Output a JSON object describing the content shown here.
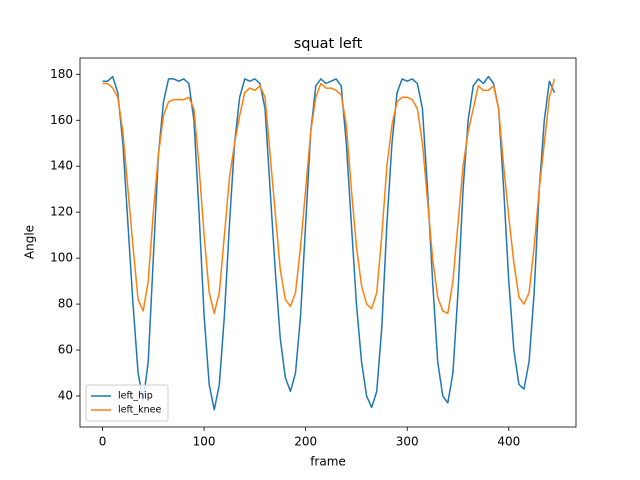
{
  "chart_data": {
    "type": "line",
    "title": "squat left",
    "x_label": "frame",
    "y_label": "Angle",
    "x": [
      0,
      5,
      10,
      15,
      20,
      25,
      30,
      35,
      40,
      45,
      50,
      55,
      60,
      65,
      70,
      75,
      80,
      85,
      90,
      95,
      100,
      105,
      110,
      115,
      120,
      125,
      130,
      135,
      140,
      145,
      150,
      155,
      160,
      165,
      170,
      175,
      180,
      185,
      190,
      195,
      200,
      205,
      210,
      215,
      220,
      225,
      230,
      235,
      240,
      245,
      250,
      255,
      260,
      265,
      270,
      275,
      280,
      285,
      290,
      295,
      300,
      305,
      310,
      315,
      320,
      325,
      330,
      335,
      340,
      345,
      350,
      355,
      360,
      365,
      370,
      375,
      380,
      385,
      390,
      395,
      400,
      405,
      410,
      415,
      420,
      425,
      430,
      435,
      440,
      445
    ],
    "series": [
      {
        "name": "left_hip",
        "color": "#1f77b4",
        "values": [
          177,
          177,
          179,
          172,
          150,
          115,
          80,
          50,
          38,
          55,
          100,
          145,
          168,
          178,
          178,
          177,
          178,
          176,
          160,
          120,
          75,
          45,
          34,
          45,
          75,
          115,
          150,
          170,
          178,
          177,
          178,
          176,
          165,
          130,
          95,
          65,
          48,
          42,
          50,
          75,
          115,
          155,
          175,
          178,
          176,
          177,
          178,
          175,
          150,
          115,
          80,
          55,
          40,
          35,
          42,
          70,
          115,
          150,
          172,
          178,
          177,
          178,
          176,
          165,
          130,
          90,
          55,
          40,
          37,
          50,
          85,
          130,
          160,
          175,
          178,
          176,
          179,
          176,
          165,
          130,
          90,
          60,
          45,
          43,
          55,
          85,
          130,
          160,
          177,
          172
        ]
      },
      {
        "name": "left_knee",
        "color": "#ff7f0e",
        "values": [
          176,
          176,
          174,
          170,
          155,
          130,
          105,
          82,
          77,
          90,
          120,
          145,
          162,
          168,
          169,
          169,
          169,
          170,
          165,
          140,
          110,
          85,
          76,
          85,
          110,
          135,
          150,
          162,
          172,
          174,
          173,
          175,
          170,
          145,
          120,
          95,
          82,
          79,
          85,
          105,
          130,
          155,
          170,
          176,
          174,
          174,
          173,
          171,
          158,
          130,
          105,
          88,
          80,
          78,
          85,
          110,
          140,
          158,
          168,
          170,
          170,
          169,
          165,
          150,
          125,
          100,
          83,
          77,
          76,
          90,
          115,
          140,
          155,
          165,
          175,
          173,
          173,
          175,
          165,
          140,
          118,
          98,
          83,
          80,
          85,
          105,
          130,
          150,
          170,
          178
        ]
      }
    ],
    "xlim": [
      -22.2,
      466.2
    ],
    "ylim": [
      26.5,
      187.1
    ],
    "xticks": [
      0,
      100,
      200,
      300,
      400
    ],
    "yticks": [
      40,
      60,
      80,
      100,
      120,
      140,
      160,
      180
    ],
    "legend": "lower left",
    "grid": false
  }
}
